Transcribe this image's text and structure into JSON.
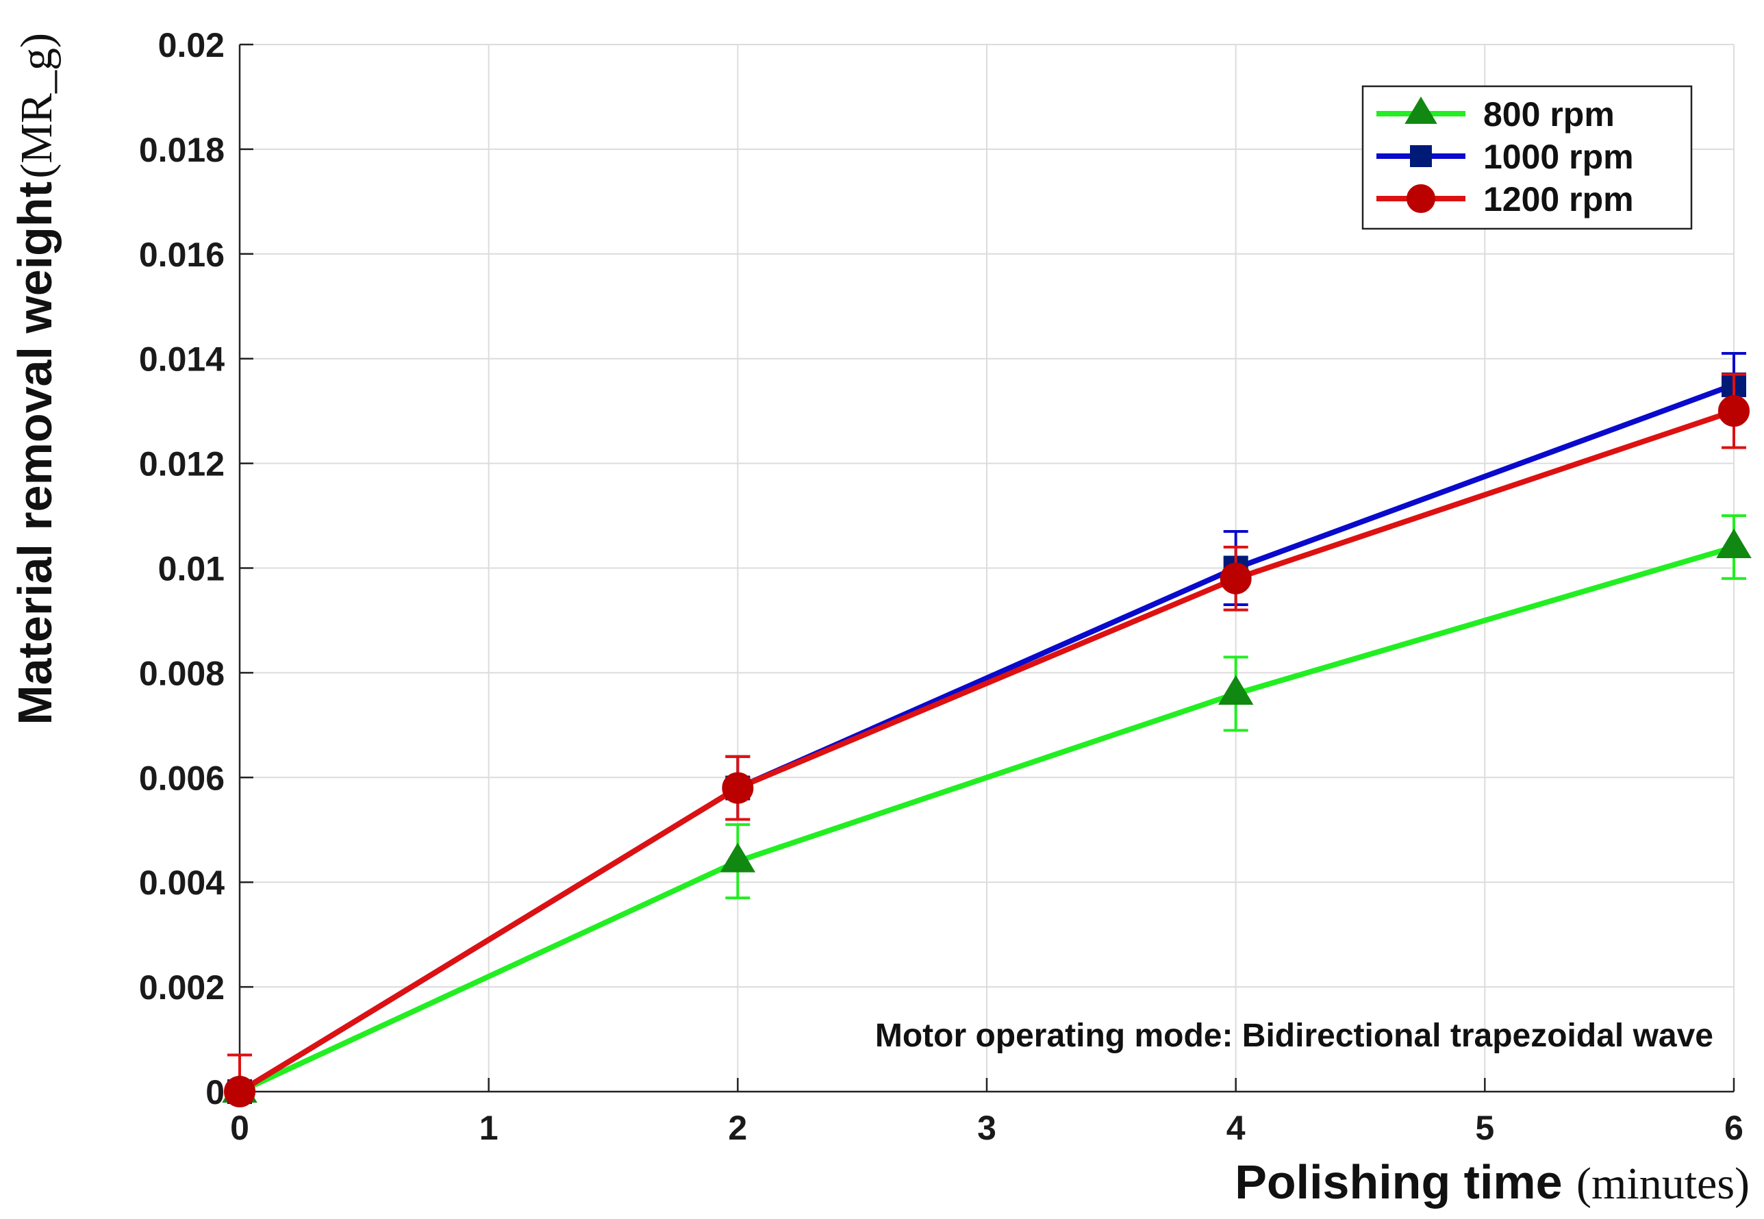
{
  "chart_data": {
    "type": "line",
    "xlabel": {
      "bold": "Polishing time",
      "unit": "(minutes)"
    },
    "ylabel": {
      "bold": "Material removal weight",
      "unit": "(MR_g)"
    },
    "xlim": [
      0,
      6
    ],
    "ylim": [
      0,
      0.02
    ],
    "xticks": [
      0,
      1,
      2,
      3,
      4,
      5,
      6
    ],
    "xtick_labels": [
      "0",
      "1",
      "2",
      "3",
      "4",
      "5",
      "6"
    ],
    "yticks": [
      0,
      0.002,
      0.004,
      0.006,
      0.008,
      0.01,
      0.012,
      0.014,
      0.016,
      0.018,
      0.02
    ],
    "ytick_labels": [
      "0",
      "0.002",
      "0.004",
      "0.006",
      "0.008",
      "0.01",
      "0.012",
      "0.014",
      "0.016",
      "0.018",
      "0.02"
    ],
    "grid": true,
    "legend_position": "top-right",
    "annotation": "Motor operating mode: Bidirectional trapezoidal wave",
    "series": [
      {
        "name": "800 rpm",
        "color": "#22ee22",
        "marker_color": "#118811",
        "marker": "triangle",
        "x": [
          0,
          2,
          4,
          6
        ],
        "y": [
          0,
          0.0044,
          0.0076,
          0.0104
        ],
        "error": [
          0.0007,
          0.0007,
          0.0007,
          0.0006
        ]
      },
      {
        "name": "1000 rpm",
        "color": "#0a0acc",
        "marker_color": "#001a77",
        "marker": "square",
        "x": [
          0,
          2,
          4,
          6
        ],
        "y": [
          0,
          0.0058,
          0.01,
          0.0135
        ],
        "error": [
          0.0007,
          0.0006,
          0.0007,
          0.0006
        ]
      },
      {
        "name": "1200 rpm",
        "color": "#dd1111",
        "marker_color": "#bb0000",
        "marker": "circle",
        "x": [
          0,
          2,
          4,
          6
        ],
        "y": [
          0,
          0.0058,
          0.0098,
          0.013
        ],
        "error": [
          0.0007,
          0.0006,
          0.0006,
          0.0007
        ]
      }
    ]
  }
}
